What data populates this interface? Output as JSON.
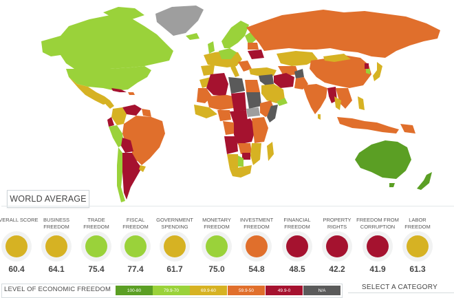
{
  "colors": {
    "free": "#5b9f24",
    "mostly_free": "#9ad23a",
    "moderately_free": "#d6b223",
    "mostly_unfree": "#e06f2c",
    "repressed": "#a5122f",
    "na": "#5a5a5a",
    "na_land": "#9e9e9e",
    "water": "#ffffff"
  },
  "world_average": {
    "label": "WORLD AVERAGE",
    "categories": [
      {
        "label": "OVERALL SCORE",
        "score": "60.4",
        "color": "#d6b223"
      },
      {
        "label": "BUSINESS FREEDOM",
        "score": "64.1",
        "color": "#d6b223"
      },
      {
        "label": "TRADE FREEDOM",
        "score": "75.4",
        "color": "#9ad23a"
      },
      {
        "label": "FISCAL FREEDOM",
        "score": "77.4",
        "color": "#9ad23a"
      },
      {
        "label": "GOVERNMENT SPENDING",
        "score": "61.7",
        "color": "#d6b223"
      },
      {
        "label": "MONETARY FREEDOM",
        "score": "75.0",
        "color": "#9ad23a"
      },
      {
        "label": "INVESTMENT FREEDOM",
        "score": "54.8",
        "color": "#e06f2c"
      },
      {
        "label": "FINANCIAL FREEDOM",
        "score": "48.5",
        "color": "#a5122f"
      },
      {
        "label": "PROPERTY RIGHTS",
        "score": "42.2",
        "color": "#a5122f"
      },
      {
        "label": "FREEDOM FROM CORRUPTION",
        "score": "41.9",
        "color": "#a5122f"
      },
      {
        "label": "LABOR FREEDOM",
        "score": "61.3",
        "color": "#d6b223"
      }
    ]
  },
  "legend": {
    "title": "LEVEL OF ECONOMIC FREEDOM",
    "items": [
      {
        "label": "100-80",
        "color": "#5b9f24"
      },
      {
        "label": "79.9-70",
        "color": "#9ad23a"
      },
      {
        "label": "69.9-60",
        "color": "#d6b223"
      },
      {
        "label": "59.9-50",
        "color": "#e06f2c"
      },
      {
        "label": "49.9-0",
        "color": "#a5122f"
      },
      {
        "label": "N/A",
        "color": "#5a5a5a"
      }
    ]
  },
  "select_category": {
    "label": "SELECT A CATEGORY"
  }
}
